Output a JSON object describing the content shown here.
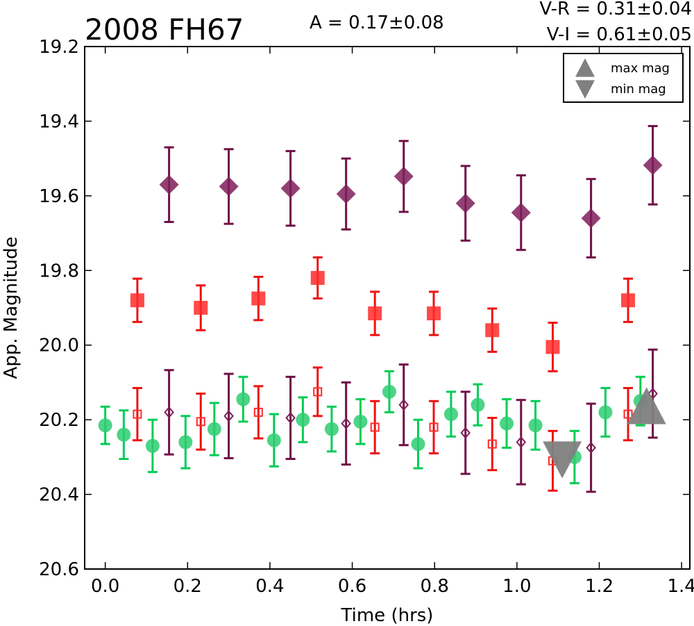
{
  "chart_data": {
    "type": "scatter",
    "title": "2008 FH67",
    "amplitude_text": "A  = 0.17±0.08",
    "vr_text": "V-R = 0.31±0.04",
    "vi_text": "V-I  = 0.61±0.05",
    "xlabel": "Time (hrs)",
    "ylabel": "App. Magnitude",
    "xlim": [
      -0.05,
      1.42
    ],
    "ylim": [
      20.6,
      19.2
    ],
    "y_inverted": true,
    "xticks": [
      "0.0",
      "0.2",
      "0.4",
      "0.6",
      "0.8",
      "1.0",
      "1.2",
      "1.4"
    ],
    "yticks": [
      "19.2",
      "19.4",
      "19.6",
      "19.8",
      "20.0",
      "20.2",
      "20.4",
      "20.6"
    ],
    "legend": {
      "position": "top-right",
      "entries": [
        {
          "label": "max mag",
          "marker": "triangle-up"
        },
        {
          "label": "min mag",
          "marker": "triangle-down"
        }
      ]
    },
    "colors": {
      "V": "#2ecc71",
      "R": "#ff2a2a",
      "I": "#7f1f5a",
      "V_bar": "#00cc55",
      "R_bar": "#ee1111",
      "I_bar": "#6f0f45",
      "extrema": "#808080"
    },
    "series": [
      {
        "filter": "V",
        "marker": "circle-filled",
        "x": [
          0.0,
          0.045,
          0.115,
          0.195,
          0.265,
          0.335,
          0.41,
          0.48,
          0.55,
          0.62,
          0.69,
          0.76,
          0.84,
          0.905,
          0.975,
          1.045,
          1.14,
          1.215,
          1.3
        ],
        "y": [
          20.215,
          20.24,
          20.27,
          20.26,
          20.225,
          20.145,
          20.255,
          20.2,
          20.225,
          20.205,
          20.125,
          20.265,
          20.185,
          20.16,
          20.21,
          20.215,
          20.3,
          20.18,
          20.15
        ],
        "err": [
          0.05,
          0.065,
          0.07,
          0.07,
          0.07,
          0.06,
          0.07,
          0.06,
          0.06,
          0.06,
          0.055,
          0.065,
          0.06,
          0.055,
          0.065,
          0.065,
          0.07,
          0.065,
          0.065
        ]
      },
      {
        "filter": "R",
        "marker": "square-filled",
        "x": [
          0.078,
          0.232,
          0.372,
          0.516,
          0.655,
          0.798,
          0.94,
          1.087,
          1.27
        ],
        "y": [
          19.88,
          19.9,
          19.875,
          19.82,
          19.915,
          19.915,
          19.96,
          20.005,
          19.88
        ],
        "err": [
          0.058,
          0.06,
          0.058,
          0.055,
          0.058,
          0.058,
          0.058,
          0.065,
          0.058
        ]
      },
      {
        "filter": "I",
        "marker": "diamond-filled",
        "x": [
          0.155,
          0.3,
          0.45,
          0.585,
          0.725,
          0.875,
          1.01,
          1.18,
          1.33
        ],
        "y": [
          19.57,
          19.575,
          19.58,
          19.595,
          19.548,
          19.62,
          19.645,
          19.66,
          19.518
        ],
        "err": [
          0.1,
          0.1,
          0.1,
          0.095,
          0.095,
          0.1,
          0.1,
          0.105,
          0.105
        ]
      },
      {
        "filter": "R (offset)",
        "marker": "square-open",
        "x": [
          0.078,
          0.232,
          0.372,
          0.516,
          0.655,
          0.798,
          0.94,
          1.087,
          1.27
        ],
        "y": [
          20.185,
          20.205,
          20.18,
          20.125,
          20.22,
          20.22,
          20.265,
          20.31,
          20.185
        ],
        "err": [
          0.07,
          0.075,
          0.07,
          0.065,
          0.07,
          0.07,
          0.07,
          0.08,
          0.07
        ]
      },
      {
        "filter": "I (offset)",
        "marker": "diamond-open",
        "x": [
          0.155,
          0.3,
          0.45,
          0.585,
          0.725,
          0.875,
          1.01,
          1.18,
          1.33
        ],
        "y": [
          20.18,
          20.19,
          20.195,
          20.21,
          20.16,
          20.235,
          20.26,
          20.275,
          20.13
        ],
        "err": [
          0.113,
          0.113,
          0.11,
          0.11,
          0.108,
          0.11,
          0.113,
          0.118,
          0.118
        ]
      }
    ],
    "extrema": [
      {
        "kind": "max mag",
        "marker": "triangle-up",
        "x": 1.315,
        "y": 20.165
      },
      {
        "kind": "min mag",
        "marker": "triangle-down",
        "x": 1.11,
        "y": 20.305
      }
    ]
  }
}
